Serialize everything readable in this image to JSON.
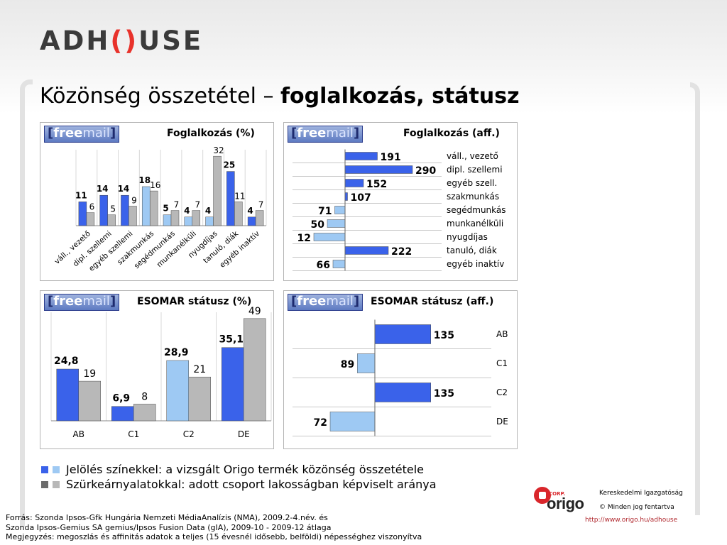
{
  "logo": {
    "pre": "ADH",
    "o": "()",
    "post": "USE"
  },
  "title": {
    "normal": "Közönség összetétel – ",
    "bold": "foglalkozás, státusz"
  },
  "freemail": {
    "bracket_open": "[",
    "free": "free",
    "mail": "mail",
    "bracket_close": "]"
  },
  "colors": {
    "blue": "#3a62ea",
    "lightblue": "#9ec9f3",
    "gray": "#b8b8b8",
    "darkgray": "#6c6c6c"
  },
  "panels": {
    "occ_pct_title": "Foglalkozás (%)",
    "occ_aff_title": "Foglalkozás (aff.)",
    "esomar_pct_title": "ESOMAR státusz (%)",
    "esomar_aff_title": "ESOMAR státusz (aff.)"
  },
  "chart_data": [
    {
      "type": "bar",
      "title": "Foglalkozás (%)",
      "categories": [
        "váll., vezető",
        "dipl. szellemi",
        "egyéb szellemi",
        "szakmunkás",
        "segédmunkás",
        "munkanélküli",
        "nyugdíjas",
        "tanuló, diák",
        "egyéb inaktív"
      ],
      "series": [
        {
          "values": [
            11,
            14,
            14,
            18,
            5,
            4,
            4,
            25,
            4
          ],
          "colors": [
            "#3a62ea",
            "#3a62ea",
            "#3a62ea",
            "#9ec9f3",
            "#9ec9f3",
            "#9ec9f3",
            "#9ec9f3",
            "#3a62ea",
            "#3a62ea"
          ]
        },
        {
          "values": [
            6,
            5,
            9,
            16,
            7,
            7,
            32,
            11,
            7
          ],
          "color": "#b8b8b8"
        }
      ],
      "ylim": [
        0,
        35
      ]
    },
    {
      "type": "bar",
      "orientation": "horizontal",
      "title": "Foglalkozás (aff.)",
      "baseline": 100,
      "categories": [
        "váll., vezető",
        "dipl. szellemi",
        "egyéb szell.",
        "szakmunkás",
        "segédmunkás",
        "munkanélküli",
        "nyugdíjas",
        "tanuló, diák",
        "egyéb inaktív"
      ],
      "values": [
        191,
        290,
        152,
        107,
        71,
        50,
        12,
        222,
        66
      ],
      "labels": [
        "191",
        "290",
        "152",
        "107",
        "71",
        "50",
        "12",
        "222",
        "66"
      ]
    },
    {
      "type": "bar",
      "title": "ESOMAR státusz (%)",
      "categories": [
        "AB",
        "C1",
        "C2",
        "DE"
      ],
      "series": [
        {
          "values": [
            24.8,
            6.9,
            28.9,
            35.1
          ],
          "labels": [
            "24,8",
            "6,9",
            "28,9",
            "35,1"
          ],
          "colors": [
            "#3a62ea",
            "#3a62ea",
            "#9ec9f3",
            "#3a62ea"
          ]
        },
        {
          "values": [
            19,
            8,
            21,
            49
          ],
          "labels": [
            "19",
            "8",
            "21",
            "49"
          ],
          "color": "#b8b8b8"
        }
      ],
      "ylim": [
        0,
        52
      ]
    },
    {
      "type": "bar",
      "orientation": "horizontal",
      "title": "ESOMAR státusz (aff.)",
      "baseline": 100,
      "categories": [
        "AB",
        "C1",
        "C2",
        "DE"
      ],
      "values": [
        135,
        89,
        135,
        72
      ],
      "labels": [
        "135",
        "89",
        "135",
        "72"
      ]
    }
  ],
  "legend": {
    "line1": "Jelölés színekkel: a vizsgált Origo termék közönség összetétele",
    "line2": "Szürkeárnyalatokkal: adott csoport lakosságban képviselt aránya"
  },
  "corp": {
    "brand": "origo",
    "corp_tag": "CORP.",
    "line1": "Kereskedelmi Igazgatóság",
    "line2": "© Minden jog fentartva",
    "line3": "http://www.origo.hu/adhouse"
  },
  "source": {
    "line1": "Forrás: Szonda Ipsos-Gfk Hungária Nemzeti MédiaAnalízis (NMA), 2009.2-4.név. és",
    "line2": "Szonda Ipsos-Gemius SA gemius/Ipsos Fusion Data (gIA), 2009-10 - 2009-12 átlaga",
    "line3": "Megjegyzés: megoszlás és affinitás adatok a teljes (15 évesnél idősebb, belföldi) népességhez viszonyítva"
  }
}
